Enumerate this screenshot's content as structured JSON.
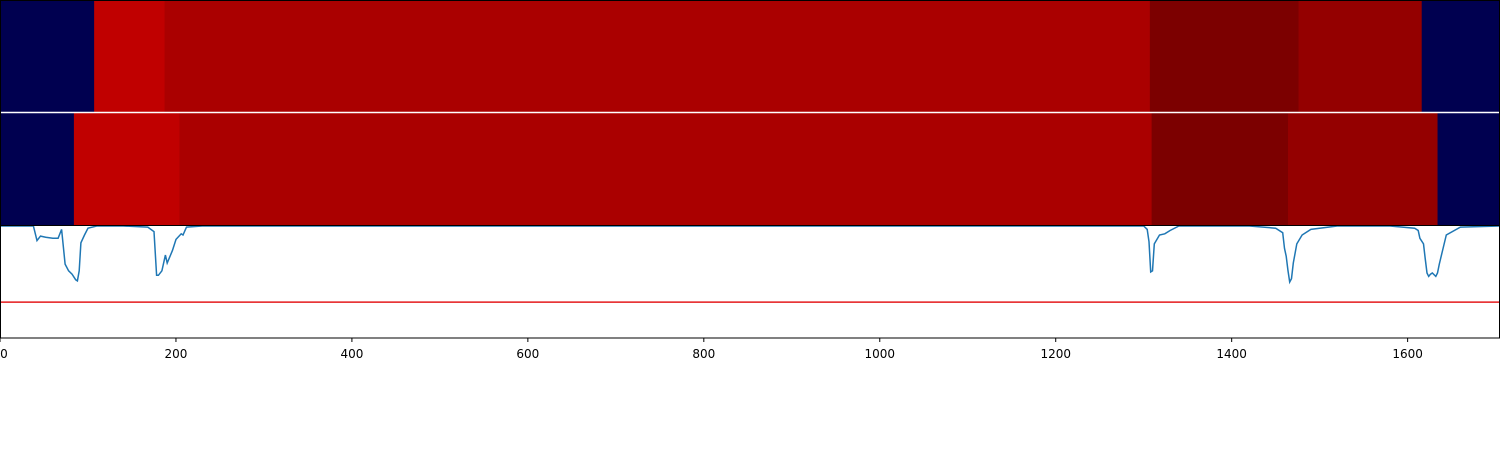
{
  "chart_data": {
    "type": "heatmap",
    "xlim": [
      0,
      1705
    ],
    "x_ticks": [
      0,
      200,
      400,
      600,
      800,
      1000,
      1200,
      1400,
      1600
    ],
    "x_tick_labels": [
      "0",
      "200",
      "400",
      "600",
      "800",
      "1000",
      "1200",
      "1400",
      "1600"
    ],
    "grid": false,
    "heatmap_rows": [
      {
        "segments": [
          {
            "start": 0,
            "end": 107,
            "color": "#000050"
          },
          {
            "start": 107,
            "end": 187,
            "color": "#c00000"
          },
          {
            "start": 187,
            "end": 1307,
            "color": "#aa0000"
          },
          {
            "start": 1307,
            "end": 1476,
            "color": "#7c0000"
          },
          {
            "start": 1476,
            "end": 1616,
            "color": "#940000"
          },
          {
            "start": 1616,
            "end": 1705,
            "color": "#000050"
          }
        ]
      },
      {
        "segments": [
          {
            "start": 0,
            "end": 84,
            "color": "#000050"
          },
          {
            "start": 84,
            "end": 204,
            "color": "#c00000"
          },
          {
            "start": 204,
            "end": 1309,
            "color": "#aa0000"
          },
          {
            "start": 1309,
            "end": 1464,
            "color": "#7c0000"
          },
          {
            "start": 1464,
            "end": 1634,
            "color": "#940000"
          },
          {
            "start": 1634,
            "end": 1705,
            "color": "#000050"
          }
        ]
      }
    ],
    "signal_panel": {
      "ylim": [
        0,
        1
      ],
      "threshold": 0.32,
      "threshold_color": "#e41a1c",
      "line_color": "#1f77b4",
      "series": {
        "x": [
          0,
          38,
          42,
          46,
          52,
          60,
          66,
          70,
          74,
          78,
          82,
          86,
          88,
          90,
          92,
          96,
          100,
          110,
          140,
          168,
          175,
          178,
          180,
          184,
          188,
          190,
          196,
          200,
          206,
          208,
          212,
          230,
          400,
          800,
          1200,
          1300,
          1304,
          1306,
          1308,
          1310,
          1312,
          1318,
          1324,
          1330,
          1340,
          1420,
          1450,
          1458,
          1460,
          1462,
          1464,
          1466,
          1468,
          1470,
          1474,
          1480,
          1490,
          1520,
          1580,
          1608,
          1612,
          1614,
          1618,
          1620,
          1622,
          1624,
          1626,
          1628,
          1632,
          1634,
          1636,
          1640,
          1644,
          1660,
          1705
        ],
        "y": [
          1.0,
          1.0,
          0.87,
          0.91,
          0.9,
          0.89,
          0.89,
          0.97,
          0.66,
          0.6,
          0.57,
          0.52,
          0.51,
          0.6,
          0.85,
          0.92,
          0.98,
          1.0,
          1.0,
          0.99,
          0.95,
          0.56,
          0.56,
          0.6,
          0.74,
          0.67,
          0.78,
          0.88,
          0.93,
          0.92,
          0.99,
          1.0,
          1.0,
          1.0,
          1.0,
          1.0,
          0.97,
          0.86,
          0.59,
          0.6,
          0.84,
          0.92,
          0.93,
          0.96,
          1.0,
          1.0,
          0.98,
          0.94,
          0.8,
          0.73,
          0.6,
          0.5,
          0.53,
          0.67,
          0.84,
          0.92,
          0.97,
          1.0,
          1.0,
          0.98,
          0.96,
          0.89,
          0.84,
          0.71,
          0.58,
          0.55,
          0.57,
          0.58,
          0.55,
          0.58,
          0.66,
          0.79,
          0.92,
          0.99,
          1.0
        ]
      }
    }
  }
}
